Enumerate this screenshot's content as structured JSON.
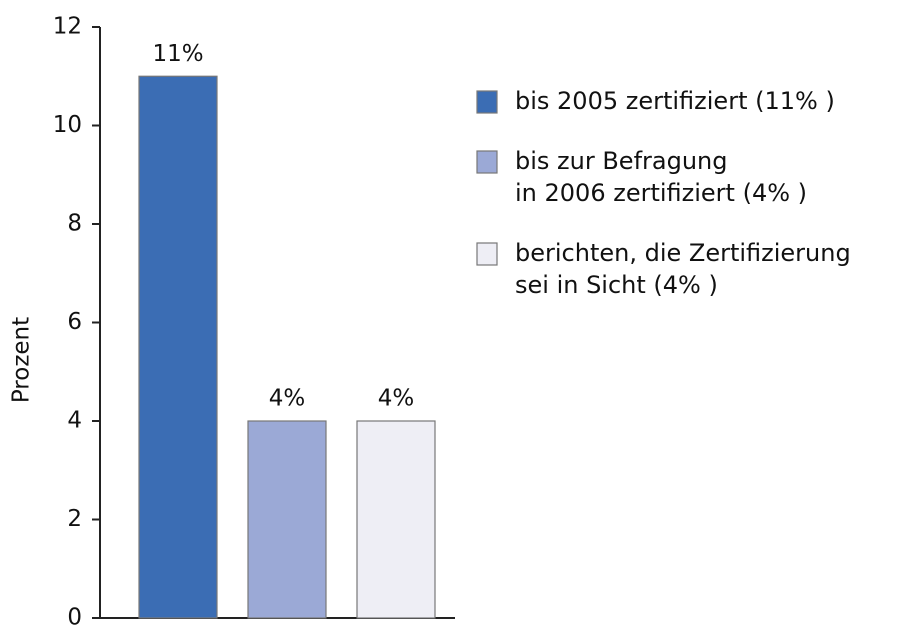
{
  "chart_data": {
    "type": "bar",
    "ylabel": "Prozent",
    "categories": [
      null,
      null,
      null
    ],
    "values": [
      11,
      4,
      4
    ],
    "value_labels": [
      "11%",
      "4%",
      "4%"
    ],
    "colors": [
      "#3b6db4",
      "#9ba9d6",
      "#eeeef5"
    ],
    "ylim": [
      0,
      12
    ],
    "yticks": [
      0,
      2,
      4,
      6,
      8,
      10,
      12
    ],
    "grid": false,
    "legend": [
      [
        "bis 2005 zertifiziert (11% )"
      ],
      [
        "bis zur Befragung",
        "in 2006 zertifiziert (4% )"
      ],
      [
        "berichten, die Zertifizierung",
        "sei in Sicht (4% )"
      ]
    ],
    "legend_position": "right"
  }
}
